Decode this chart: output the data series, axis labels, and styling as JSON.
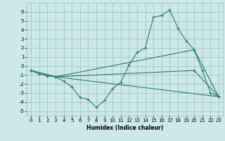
{
  "title": "",
  "xlabel": "Humidex (Indice chaleur)",
  "background_color": "#cce8e8",
  "grid_color": "#9bbfbf",
  "line_color": "#2d7a6e",
  "xlim": [
    -0.5,
    23.5
  ],
  "ylim": [
    -5.5,
    7.0
  ],
  "xticks": [
    0,
    1,
    2,
    3,
    4,
    5,
    6,
    7,
    8,
    9,
    10,
    11,
    12,
    13,
    14,
    15,
    16,
    17,
    18,
    19,
    20,
    21,
    22,
    23
  ],
  "yticks": [
    -5,
    -4,
    -3,
    -2,
    -1,
    0,
    1,
    2,
    3,
    4,
    5,
    6
  ],
  "lines": [
    {
      "x": [
        0,
        1,
        2,
        3,
        4,
        5,
        6,
        7,
        8,
        9,
        10,
        11,
        12,
        13,
        14,
        15,
        16,
        17,
        18,
        19,
        20,
        21,
        22,
        23
      ],
      "y": [
        -0.5,
        -0.9,
        -1.1,
        -1.2,
        -1.7,
        -2.3,
        -3.5,
        -3.7,
        -4.6,
        -3.8,
        -2.5,
        -1.8,
        0.1,
        1.5,
        2.0,
        5.4,
        5.6,
        6.2,
        4.2,
        2.8,
        1.8,
        -0.5,
        -3.0,
        -3.4
      ]
    },
    {
      "x": [
        0,
        3,
        23
      ],
      "y": [
        -0.5,
        -1.2,
        -3.4
      ]
    },
    {
      "x": [
        0,
        3,
        20,
        23
      ],
      "y": [
        -0.5,
        -1.2,
        1.8,
        -3.4
      ]
    },
    {
      "x": [
        0,
        3,
        20,
        23
      ],
      "y": [
        -0.5,
        -1.2,
        -0.5,
        -3.4
      ]
    }
  ],
  "xlabel_fontsize": 5.5,
  "tick_fontsize": 5
}
